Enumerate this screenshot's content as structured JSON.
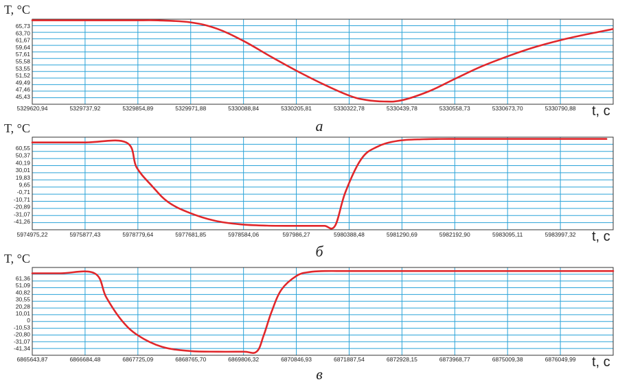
{
  "chart_data": [
    {
      "type": "line",
      "panel_label": "а",
      "ylabel": "T, °C",
      "xlabel": "t, с",
      "y_ticks": [
        "65,73",
        "63,70",
        "61,67",
        "59,64",
        "57,61",
        "55,58",
        "53,55",
        "51,52",
        "49,49",
        "47,46",
        "45,43"
      ],
      "x_ticks": [
        "5329620,94",
        "5329737,92",
        "5329854,89",
        "5329971,88",
        "5330088,84",
        "5330205,81",
        "5330322,78",
        "5330439,78",
        "5330558,73",
        "5330673,70",
        "5330790,88"
      ],
      "xlim": [
        5329620.94,
        5330907.86
      ],
      "ylim": [
        44.5,
        66.0
      ],
      "grid": true,
      "series": [
        {
          "color": "#e0272b",
          "x": [
            5329620.94,
            5329737.92,
            5329854.89,
            5329900.0,
            5329971.88,
            5330030.0,
            5330088.84,
            5330150.0,
            5330205.81,
            5330265.0,
            5330322.78,
            5330360.0,
            5330400.0,
            5330439.78,
            5330500.0,
            5330558.73,
            5330615.0,
            5330673.7,
            5330730.0,
            5330790.88,
            5330850.0,
            5330907.0
          ],
          "y": [
            65.73,
            65.73,
            65.73,
            65.7,
            65.2,
            63.6,
            60.5,
            56.5,
            53.0,
            49.6,
            46.7,
            45.6,
            45.2,
            45.5,
            47.8,
            51.0,
            54.0,
            56.6,
            58.8,
            60.7,
            62.2,
            63.5
          ]
        }
      ]
    },
    {
      "type": "line",
      "panel_label": "б",
      "ylabel": "T, °C",
      "xlabel": "t, с",
      "y_ticks": [
        "60,55",
        "50,37",
        "40,19",
        "30,01",
        "19,83",
        "9,65",
        "-0,71",
        "-10,71",
        "-20,89",
        "-31,07",
        "-41,26"
      ],
      "x_ticks": [
        "5974975,22",
        "5975877,43",
        "5978779,64",
        "5977681,85",
        "5978584,06",
        "597986,27",
        "5980388,48",
        "5981290,69",
        "5982192,90",
        "5983095,11",
        "5983997,32"
      ],
      "xlim": [
        0,
        11.13
      ],
      "ylim": [
        -46.0,
        67.0
      ],
      "grid": true,
      "series": [
        {
          "color": "#e0272b",
          "x": [
            0.0,
            1.0,
            1.8,
            2.0,
            2.3,
            2.6,
            3.0,
            3.5,
            4.0,
            4.5,
            5.0,
            5.4,
            5.6,
            5.8,
            6.0,
            6.3,
            6.6,
            7.0,
            7.5,
            8.0,
            9.0,
            10.0,
            11.0
          ],
          "y": [
            60.55,
            60.55,
            60.55,
            30.0,
            7.0,
            -12.0,
            -25.0,
            -35.0,
            -39.5,
            -41.0,
            -41.26,
            -41.26,
            -41.26,
            -41.26,
            0.0,
            40.0,
            55.0,
            62.5,
            64.5,
            64.8,
            64.8,
            64.8,
            64.8
          ]
        }
      ]
    },
    {
      "type": "line",
      "panel_label": "в",
      "ylabel": "T, °C",
      "xlabel": "t, с",
      "y_ticks": [
        "61,36",
        "51,09",
        "40,82",
        "30,55",
        "20,28",
        "10,01",
        "0",
        "-10,53",
        "-20,80",
        "-31,07",
        "-41,34"
      ],
      "x_ticks": [
        "6865643,87",
        "6866684,48",
        "6867725,09",
        "6868765,70",
        "6869806,32",
        "6870846,93",
        "6871887,54",
        "6872928,15",
        "6873968,77",
        "6875009,38",
        "6876049,99"
      ],
      "xlim": [
        6865643.87,
        6877080.0
      ],
      "ylim": [
        -46.0,
        69.0
      ],
      "grid": true,
      "series": [
        {
          "color": "#e0272b",
          "x": [
            6865643.87,
            6866200.0,
            6866870.0,
            6867100.0,
            6867400.0,
            6867725.09,
            6868200.0,
            6868765.7,
            6869300.0,
            6869806.32,
            6870060.0,
            6870200.0,
            6870350.0,
            6870550.0,
            6870846.93,
            6871100.0,
            6871400.0,
            6871887.54,
            6872928.15,
            6874000.0,
            6875009.38,
            6876049.99,
            6877080.0
          ],
          "y": [
            61.36,
            61.36,
            61.36,
            30.0,
            0.0,
            -20.0,
            -35.0,
            -40.5,
            -41.34,
            -41.34,
            -41.34,
            -20.0,
            10.0,
            40.0,
            58.0,
            63.0,
            64.3,
            64.3,
            64.3,
            64.3,
            64.3,
            64.3,
            64.3
          ]
        }
      ]
    }
  ]
}
